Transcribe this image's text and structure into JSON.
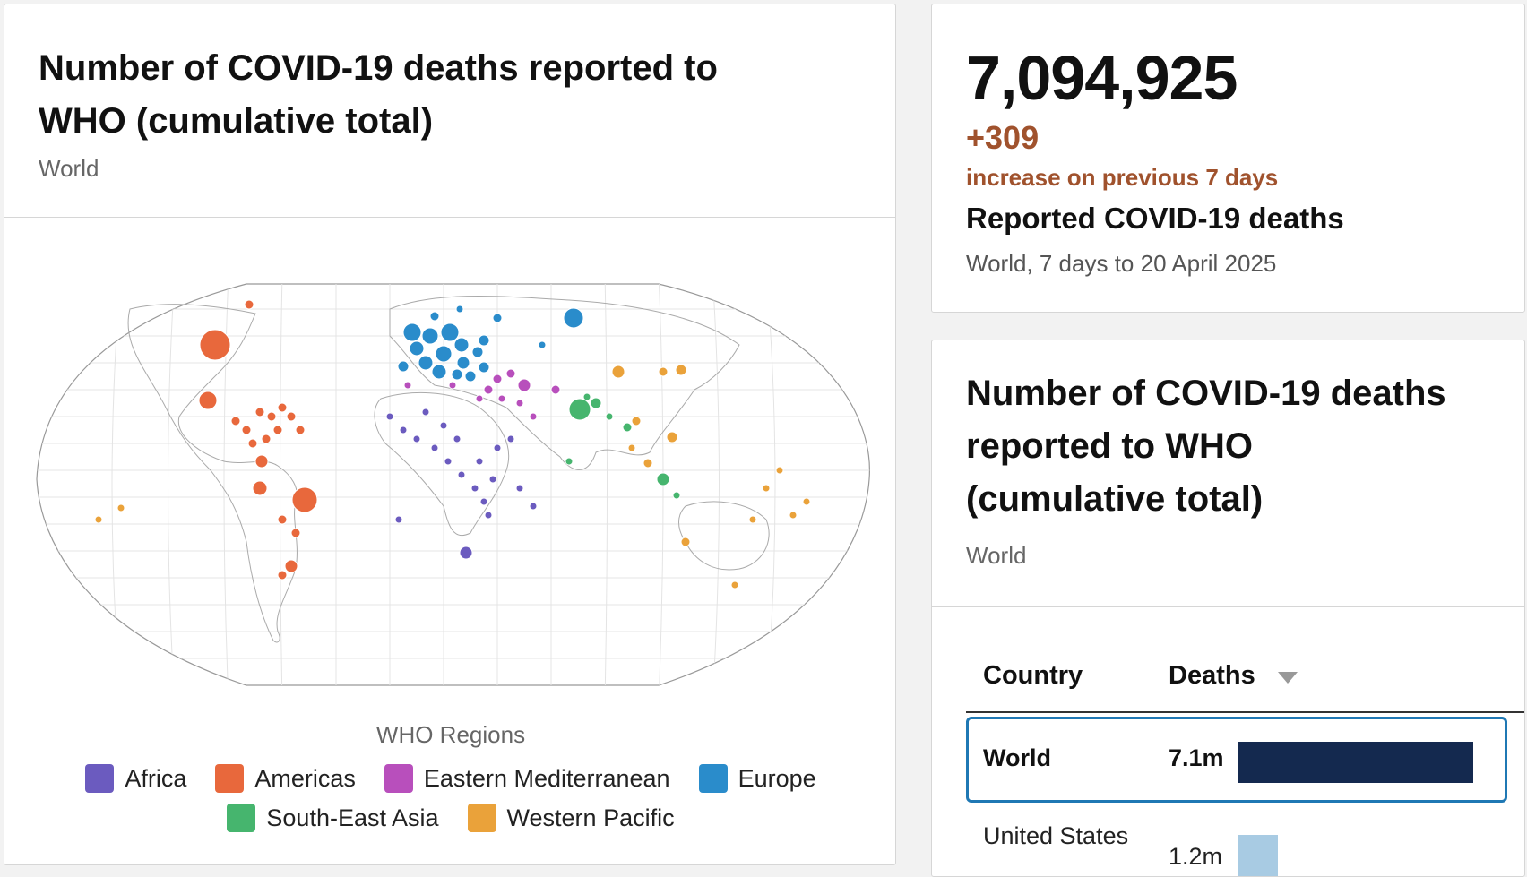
{
  "map_card": {
    "title_line1": "Number of COVID-19 deaths reported to",
    "title_line2": "WHO (cumulative total)",
    "subtitle": "World",
    "legend_title": "WHO Regions",
    "legend": [
      {
        "name": "Africa",
        "color": "#6b5bbf"
      },
      {
        "name": "Americas",
        "color": "#e8683c"
      },
      {
        "name": "Eastern Mediterranean",
        "color": "#b84fbc"
      },
      {
        "name": "Europe",
        "color": "#2a8ccb"
      },
      {
        "name": "South-East Asia",
        "color": "#46b56e"
      },
      {
        "name": "Western Pacific",
        "color": "#eaa23a"
      }
    ]
  },
  "stat_card": {
    "total": "7,094,925",
    "change": "+309",
    "change_label": "increase on previous 7 days",
    "label": "Reported COVID-19 deaths",
    "sub": "World, 7 days to 20 April 2025"
  },
  "table_card": {
    "title_line1": "Number of COVID-19 deaths",
    "title_line2": "reported to WHO",
    "title_line3": "(cumulative total)",
    "subtitle": "World",
    "col_country": "Country",
    "col_deaths": "Deaths",
    "rows": [
      {
        "country": "World",
        "value_label": "7.1m",
        "value": 7.1
      },
      {
        "country": "United States",
        "value_label": "1.2m",
        "value": 1.2
      }
    ]
  },
  "colors": {
    "world_bar": "#14294f",
    "country_bar": "#a8cbe3",
    "highlight_border": "#1f78b4",
    "change_text": "#a0522d"
  }
}
